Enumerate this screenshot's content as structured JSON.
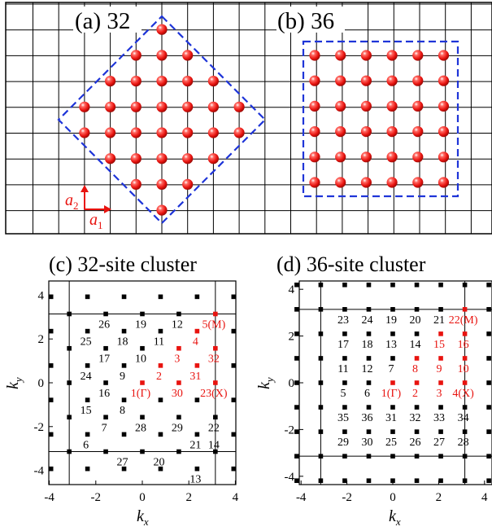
{
  "colors": {
    "site": "#e8130f",
    "grid": "#000000",
    "cluster_border": "#1f35d8",
    "arrow": "#e8130f",
    "k_black": "#000000",
    "k_red": "#e8130f"
  },
  "top_panels": {
    "a": {
      "label": "(a) 32",
      "sites": 32,
      "border_shape": "diamond"
    },
    "b": {
      "label": "(b) 36",
      "sites": 36,
      "border_shape": "square"
    },
    "lattice_vectors": {
      "a1_letter": "a",
      "a1_sub": "1",
      "a2_letter": "a",
      "a2_sub": "2"
    }
  },
  "bottom_panels": {
    "c": {
      "title": "(c) 32-site cluster"
    },
    "d": {
      "title": "(d) 36-site cluster"
    },
    "xlabel_letter": "k",
    "xlabel_sub": "x",
    "ylabel_letter": "k",
    "ylabel_sub": "y",
    "xticks": [
      "-4",
      "-2",
      "0",
      "2",
      "4"
    ],
    "yticks": [
      "4",
      "2",
      "0",
      "-2",
      "-4"
    ]
  },
  "chart_data": [
    {
      "type": "scatter",
      "title": "(c) 32-site cluster",
      "xlabel": "kx",
      "ylabel": "ky",
      "xlim": [
        -4.5,
        4.5
      ],
      "ylim": [
        -4.5,
        4.5
      ],
      "zone_boundary": [
        -3.1416,
        3.1416
      ],
      "background_points_note": "reciprocal lattice of the 32-site cluster: (m+n)·π/4, (m−n)·π/4",
      "labeled_points": [
        {
          "label": "1(Γ)",
          "kx": 0.0,
          "ky": 0.0,
          "highlight": true
        },
        {
          "label": "2",
          "kx": 0.785,
          "ky": 0.785,
          "highlight": true
        },
        {
          "label": "3",
          "kx": 1.571,
          "ky": 1.571,
          "highlight": true
        },
        {
          "label": "4",
          "kx": 2.356,
          "ky": 2.356,
          "highlight": true
        },
        {
          "label": "5(M)",
          "kx": 3.142,
          "ky": 3.142,
          "highlight": true
        },
        {
          "label": "30",
          "kx": 1.571,
          "ky": 0.0,
          "highlight": true
        },
        {
          "label": "31",
          "kx": 2.356,
          "ky": 0.785,
          "highlight": true
        },
        {
          "label": "32",
          "kx": 3.142,
          "ky": 1.571,
          "highlight": true
        },
        {
          "label": "23(X)",
          "kx": 3.142,
          "ky": 0.0,
          "highlight": true
        },
        {
          "label": "6",
          "kx": -2.356,
          "ky": -2.356,
          "highlight": false
        },
        {
          "label": "7",
          "kx": -1.571,
          "ky": -1.571,
          "highlight": false
        },
        {
          "label": "8",
          "kx": -0.785,
          "ky": -0.785,
          "highlight": false
        },
        {
          "label": "9",
          "kx": -0.785,
          "ky": 0.785,
          "highlight": false
        },
        {
          "label": "10",
          "kx": 0.0,
          "ky": 1.571,
          "highlight": false
        },
        {
          "label": "11",
          "kx": 0.785,
          "ky": 2.356,
          "highlight": false
        },
        {
          "label": "12",
          "kx": 1.571,
          "ky": 3.142,
          "highlight": false
        },
        {
          "label": "13",
          "kx": 2.356,
          "ky": -3.927,
          "highlight": false
        },
        {
          "label": "14",
          "kx": 3.142,
          "ky": -2.356,
          "highlight": false
        },
        {
          "label": "15",
          "kx": -2.356,
          "ky": -0.785,
          "highlight": false
        },
        {
          "label": "16",
          "kx": -1.571,
          "ky": 0.0,
          "highlight": false
        },
        {
          "label": "17",
          "kx": -1.571,
          "ky": 1.571,
          "highlight": false
        },
        {
          "label": "18",
          "kx": -0.785,
          "ky": 2.356,
          "highlight": false
        },
        {
          "label": "19",
          "kx": 0.0,
          "ky": 3.142,
          "highlight": false
        },
        {
          "label": "20",
          "kx": 0.785,
          "ky": -3.142,
          "highlight": false
        },
        {
          "label": "21",
          "kx": 2.356,
          "ky": -2.356,
          "highlight": false
        },
        {
          "label": "22",
          "kx": 3.142,
          "ky": -1.571,
          "highlight": false
        },
        {
          "label": "24",
          "kx": -2.356,
          "ky": 0.785,
          "highlight": false
        },
        {
          "label": "25",
          "kx": -2.356,
          "ky": 2.356,
          "highlight": false
        },
        {
          "label": "26",
          "kx": -1.571,
          "ky": 3.142,
          "highlight": false
        },
        {
          "label": "27",
          "kx": -0.785,
          "ky": -3.142,
          "highlight": false
        },
        {
          "label": "28",
          "kx": 0.0,
          "ky": -1.571,
          "highlight": false
        },
        {
          "label": "29",
          "kx": 1.571,
          "ky": -1.571,
          "highlight": false
        }
      ]
    },
    {
      "type": "scatter",
      "title": "(d) 36-site cluster",
      "xlabel": "kx",
      "ylabel": "ky",
      "xlim": [
        -4.5,
        4.5
      ],
      "ylim": [
        -4.5,
        4.5
      ],
      "zone_boundary": [
        -3.1416,
        3.1416
      ],
      "background_points_note": "reciprocal lattice of the 36-site cluster: m·π/3, n·π/3",
      "labeled_points": [
        {
          "label": "1(Γ)",
          "kx": 0.0,
          "ky": 0.0,
          "highlight": true
        },
        {
          "label": "2",
          "kx": 1.047,
          "ky": 0.0,
          "highlight": true
        },
        {
          "label": "3",
          "kx": 2.094,
          "ky": 0.0,
          "highlight": true
        },
        {
          "label": "4(X)",
          "kx": 3.142,
          "ky": 0.0,
          "highlight": true
        },
        {
          "label": "8",
          "kx": 1.047,
          "ky": 1.047,
          "highlight": true
        },
        {
          "label": "9",
          "kx": 2.094,
          "ky": 1.047,
          "highlight": true
        },
        {
          "label": "10",
          "kx": 3.142,
          "ky": 1.047,
          "highlight": true
        },
        {
          "label": "15",
          "kx": 2.094,
          "ky": 2.094,
          "highlight": true
        },
        {
          "label": "16",
          "kx": 3.142,
          "ky": 2.094,
          "highlight": true
        },
        {
          "label": "22(M)",
          "kx": 3.142,
          "ky": 3.142,
          "highlight": true
        },
        {
          "label": "5",
          "kx": -2.094,
          "ky": 0.0,
          "highlight": false
        },
        {
          "label": "6",
          "kx": -1.047,
          "ky": 0.0,
          "highlight": false
        },
        {
          "label": "7",
          "kx": 0.0,
          "ky": 1.047,
          "highlight": false
        },
        {
          "label": "11",
          "kx": -2.094,
          "ky": 1.047,
          "highlight": false
        },
        {
          "label": "12",
          "kx": -1.047,
          "ky": 1.047,
          "highlight": false
        },
        {
          "label": "13",
          "kx": 0.0,
          "ky": 2.094,
          "highlight": false
        },
        {
          "label": "14",
          "kx": 1.047,
          "ky": 2.094,
          "highlight": false
        },
        {
          "label": "17",
          "kx": -2.094,
          "ky": 2.094,
          "highlight": false
        },
        {
          "label": "18",
          "kx": -1.047,
          "ky": 2.094,
          "highlight": false
        },
        {
          "label": "19",
          "kx": 0.0,
          "ky": 3.142,
          "highlight": false
        },
        {
          "label": "20",
          "kx": 1.047,
          "ky": 3.142,
          "highlight": false
        },
        {
          "label": "21",
          "kx": 2.094,
          "ky": 3.142,
          "highlight": false
        },
        {
          "label": "23",
          "kx": -2.094,
          "ky": 3.142,
          "highlight": false
        },
        {
          "label": "24",
          "kx": -1.047,
          "ky": 3.142,
          "highlight": false
        },
        {
          "label": "25",
          "kx": 0.0,
          "ky": -2.094,
          "highlight": false
        },
        {
          "label": "26",
          "kx": 1.047,
          "ky": -2.094,
          "highlight": false
        },
        {
          "label": "27",
          "kx": 2.094,
          "ky": -2.094,
          "highlight": false
        },
        {
          "label": "28",
          "kx": 3.142,
          "ky": -2.094,
          "highlight": false
        },
        {
          "label": "29",
          "kx": -2.094,
          "ky": -2.094,
          "highlight": false
        },
        {
          "label": "30",
          "kx": -1.047,
          "ky": -2.094,
          "highlight": false
        },
        {
          "label": "31",
          "kx": 0.0,
          "ky": -1.047,
          "highlight": false
        },
        {
          "label": "32",
          "kx": 1.047,
          "ky": -1.047,
          "highlight": false
        },
        {
          "label": "33",
          "kx": 2.094,
          "ky": -1.047,
          "highlight": false
        },
        {
          "label": "34",
          "kx": 3.142,
          "ky": -1.047,
          "highlight": false
        },
        {
          "label": "35",
          "kx": -2.094,
          "ky": -1.047,
          "highlight": false
        },
        {
          "label": "36",
          "kx": -1.047,
          "ky": -1.047,
          "highlight": false
        }
      ]
    }
  ]
}
